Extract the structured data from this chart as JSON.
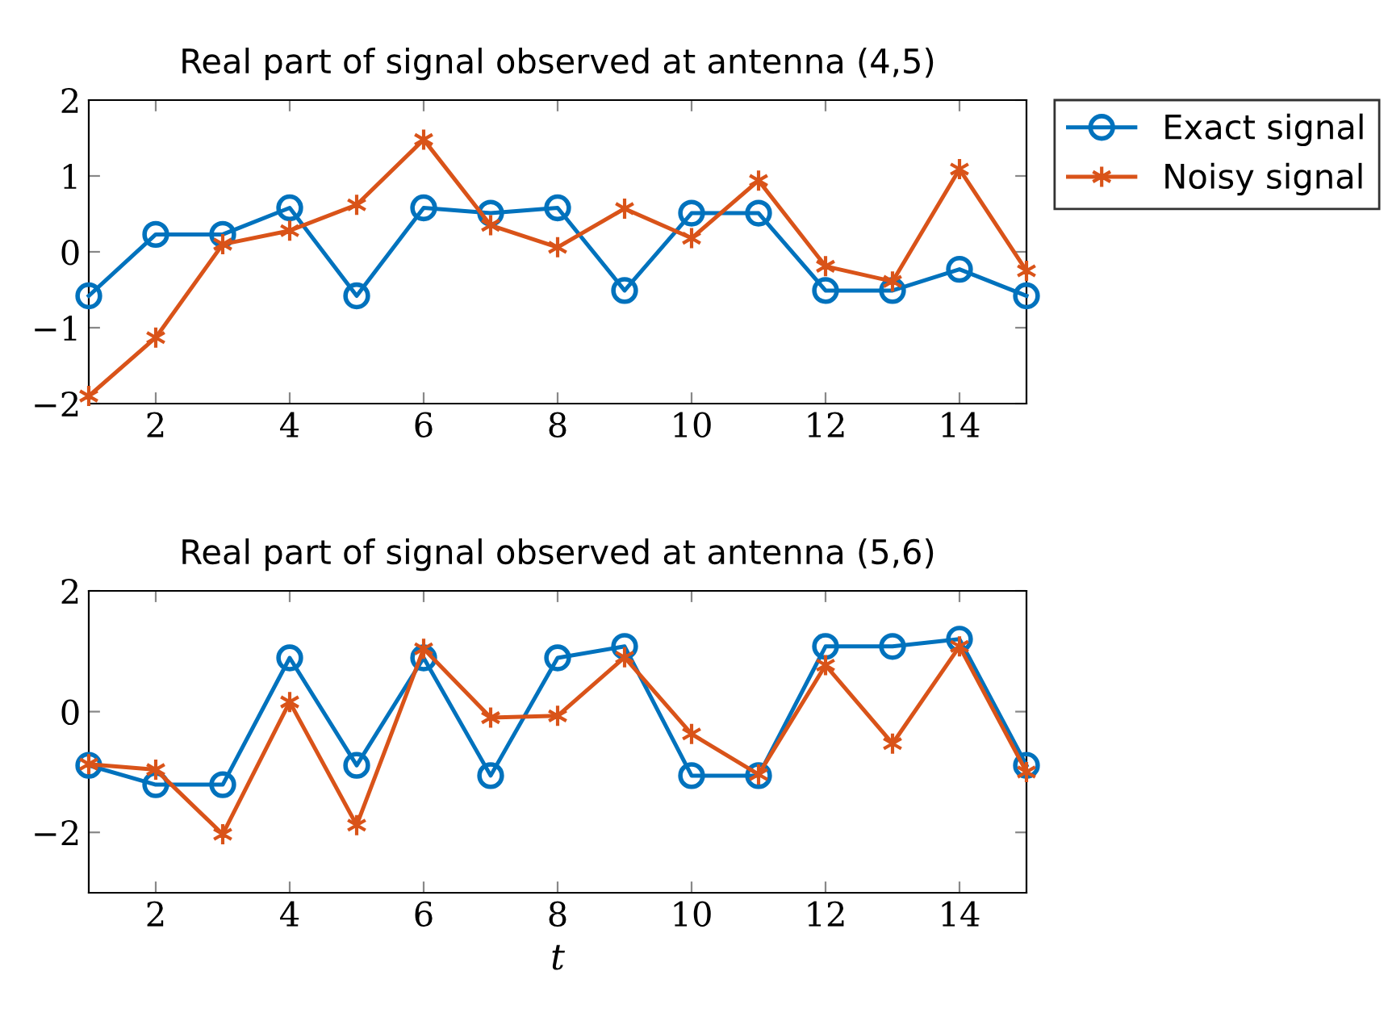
{
  "chart_data": [
    {
      "type": "line",
      "title": "Real part of signal observed at antenna (4,5)",
      "x": [
        1,
        2,
        3,
        4,
        5,
        6,
        7,
        8,
        9,
        10,
        11,
        12,
        13,
        14,
        15
      ],
      "xlim": [
        1,
        15
      ],
      "xticks": [
        2,
        4,
        6,
        8,
        10,
        12,
        14
      ],
      "ylim": [
        -2,
        2
      ],
      "yticks": [
        -2,
        -1,
        0,
        1,
        2
      ],
      "grid": false,
      "legend": "top right",
      "series": [
        {
          "name": "Exact signal",
          "color": "#0072bd",
          "marker": "circle",
          "values": [
            -0.58,
            0.23,
            0.23,
            0.58,
            -0.58,
            0.58,
            0.51,
            0.58,
            -0.51,
            0.51,
            0.51,
            -0.51,
            -0.51,
            -0.23,
            -0.58
          ]
        },
        {
          "name": "Noisy signal",
          "color": "#d95319",
          "marker": "cross",
          "values": [
            -1.9,
            -1.13,
            0.1,
            0.28,
            0.62,
            1.48,
            0.35,
            0.06,
            0.57,
            0.18,
            0.94,
            -0.19,
            -0.39,
            1.09,
            -0.25
          ]
        }
      ]
    },
    {
      "type": "line",
      "title": "Real part of signal observed at antenna (5,6)",
      "xlabel": "t",
      "x": [
        1,
        2,
        3,
        4,
        5,
        6,
        7,
        8,
        9,
        10,
        11,
        12,
        13,
        14,
        15
      ],
      "xlim": [
        1,
        15
      ],
      "xticks": [
        2,
        4,
        6,
        8,
        10,
        12,
        14
      ],
      "ylim": [
        -3,
        2
      ],
      "yticks": [
        -2,
        0,
        2
      ],
      "grid": false,
      "series": [
        {
          "color": "#0072bd",
          "marker": "circle",
          "values": [
            -0.89,
            -1.21,
            -1.21,
            0.89,
            -0.89,
            0.89,
            -1.06,
            0.89,
            1.08,
            -1.06,
            -1.06,
            1.08,
            1.08,
            1.2,
            -0.89
          ]
        },
        {
          "color": "#d95319",
          "marker": "cross",
          "values": [
            -0.87,
            -0.96,
            -2.03,
            0.16,
            -1.88,
            1.04,
            -0.1,
            -0.07,
            0.9,
            -0.37,
            -1.04,
            0.77,
            -0.53,
            1.08,
            -1.0
          ]
        }
      ]
    }
  ]
}
